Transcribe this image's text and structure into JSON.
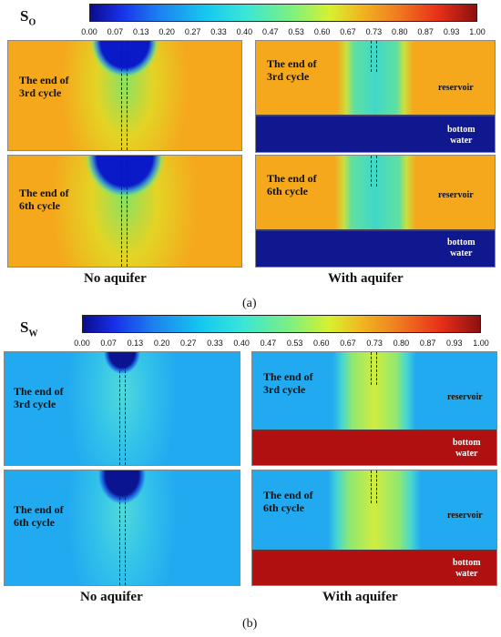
{
  "ticks": [
    "0.00",
    "0.07",
    "0.13",
    "0.20",
    "0.27",
    "0.33",
    "0.40",
    "0.47",
    "0.53",
    "0.60",
    "0.67",
    "0.73",
    "0.80",
    "0.87",
    "0.93",
    "1.00"
  ],
  "figure_a": {
    "symbol_base": "S",
    "symbol_sub": "O",
    "left_caption": "No aquifer",
    "right_caption": "With aquifer",
    "sublabel": "(a)",
    "panels": {
      "third": "The end of\n3rd cycle",
      "sixth": "The end of\n6th cycle"
    },
    "reservoir": "reservoir",
    "bottom_water": "bottom\nwater"
  },
  "figure_b": {
    "symbol_base": "S",
    "symbol_sub": "W",
    "left_caption": "No aquifer",
    "right_caption": "With aquifer",
    "sublabel": "(b)",
    "panels": {
      "third": "The end of\n3rd cycle",
      "sixth": "The end of\n6th cycle"
    },
    "reservoir": "reservoir",
    "bottom_water": "bottom\nwater"
  },
  "colors": {
    "oil_bg": "#f5a81c",
    "water_bg": "#22aaf0",
    "deep_blue": "#101890",
    "deep_red": "#b01010"
  }
}
